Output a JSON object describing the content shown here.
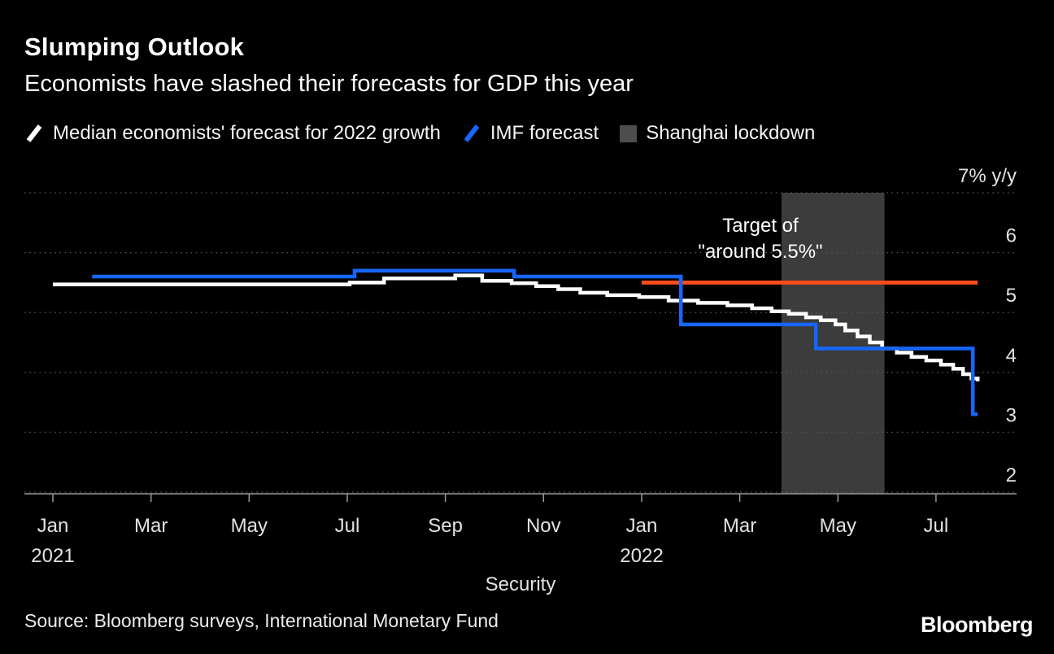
{
  "header": {
    "title": "Slumping Outlook",
    "subtitle": "Economists have slashed their forecasts for GDP this year"
  },
  "legend": [
    {
      "label": "Median economists' forecast for 2022 growth",
      "color": "#ffffff",
      "swatch": "line"
    },
    {
      "label": "IMF forecast",
      "color": "#1766ff",
      "swatch": "line"
    },
    {
      "label": "Shanghai lockdown",
      "color": "#4d4d4d",
      "swatch": "square"
    }
  ],
  "annotation": {
    "line1": "Target of",
    "line2": "\"around 5.5%\""
  },
  "axis": {
    "y_labels": [
      {
        "value": 7,
        "label": "7% y/y"
      },
      {
        "value": 6,
        "label": "6"
      },
      {
        "value": 5,
        "label": "5"
      },
      {
        "value": 4,
        "label": "4"
      },
      {
        "value": 3,
        "label": "3"
      },
      {
        "value": 2,
        "label": "2"
      }
    ],
    "x_labels": [
      {
        "m": 0,
        "label": "Jan",
        "year": "2021"
      },
      {
        "m": 2,
        "label": "Mar"
      },
      {
        "m": 4,
        "label": "May"
      },
      {
        "m": 6,
        "label": "Jul"
      },
      {
        "m": 8,
        "label": "Sep"
      },
      {
        "m": 10,
        "label": "Nov"
      },
      {
        "m": 12,
        "label": "Jan",
        "year": "2022"
      },
      {
        "m": 14,
        "label": "Mar"
      },
      {
        "m": 16,
        "label": "May"
      },
      {
        "m": 18,
        "label": "Jul"
      }
    ],
    "x_title": "Security"
  },
  "source": {
    "text": "Source: Bloomberg surveys, International Monetary Fund"
  },
  "branding": {
    "logo": "Bloomberg"
  },
  "chart_data": {
    "type": "line",
    "title": "Slumping Outlook",
    "subtitle": "Economists have slashed their forecasts for GDP this year",
    "x_unit": "months since Jan 2021",
    "x_range": [
      0,
      18.85
    ],
    "ylim": [
      1.8,
      7.2
    ],
    "y_ticks": [
      2,
      3,
      4,
      5,
      6,
      7
    ],
    "y_axis_label": "% y/y",
    "grid": "horizontal-dotted",
    "legend_position": "top",
    "series": [
      {
        "name": "Median economists' forecast for 2022 growth",
        "color": "#ffffff",
        "interpolation": "step-after",
        "points": [
          [
            0,
            5.47
          ],
          [
            6.05,
            5.5
          ],
          [
            6.75,
            5.57
          ],
          [
            8.2,
            5.62
          ],
          [
            8.75,
            5.53
          ],
          [
            9.35,
            5.49
          ],
          [
            9.85,
            5.44
          ],
          [
            10.3,
            5.39
          ],
          [
            10.75,
            5.33
          ],
          [
            11.3,
            5.29
          ],
          [
            11.95,
            5.26
          ],
          [
            12.55,
            5.2
          ],
          [
            13.15,
            5.16
          ],
          [
            13.75,
            5.12
          ],
          [
            14.25,
            5.07
          ],
          [
            14.65,
            5.02
          ],
          [
            15.0,
            4.98
          ],
          [
            15.35,
            4.92
          ],
          [
            15.65,
            4.87
          ],
          [
            15.95,
            4.8
          ],
          [
            16.15,
            4.7
          ],
          [
            16.4,
            4.6
          ],
          [
            16.65,
            4.5
          ],
          [
            16.9,
            4.4
          ],
          [
            17.2,
            4.33
          ],
          [
            17.5,
            4.26
          ],
          [
            17.8,
            4.2
          ],
          [
            18.1,
            4.13
          ],
          [
            18.35,
            4.06
          ],
          [
            18.55,
            3.97
          ],
          [
            18.72,
            3.9
          ],
          [
            18.85,
            3.85
          ]
        ]
      },
      {
        "name": "IMF forecast",
        "color": "#1766ff",
        "interpolation": "step-after",
        "points": [
          [
            0.8,
            5.6
          ],
          [
            6.15,
            5.7
          ],
          [
            9.4,
            5.6
          ],
          [
            12.8,
            4.8
          ],
          [
            15.55,
            4.4
          ],
          [
            18.75,
            3.3
          ],
          [
            18.85,
            3.3
          ]
        ]
      }
    ],
    "target_line": {
      "label": "Target of \"around 5.5%\"",
      "value": 5.5,
      "x_start": 12.0,
      "x_end": 18.85,
      "color": "#fb4d1c"
    },
    "shaded_region": {
      "label": "Shanghai lockdown",
      "x_start": 14.85,
      "x_end": 16.95,
      "color": "#3c3c3c"
    }
  }
}
